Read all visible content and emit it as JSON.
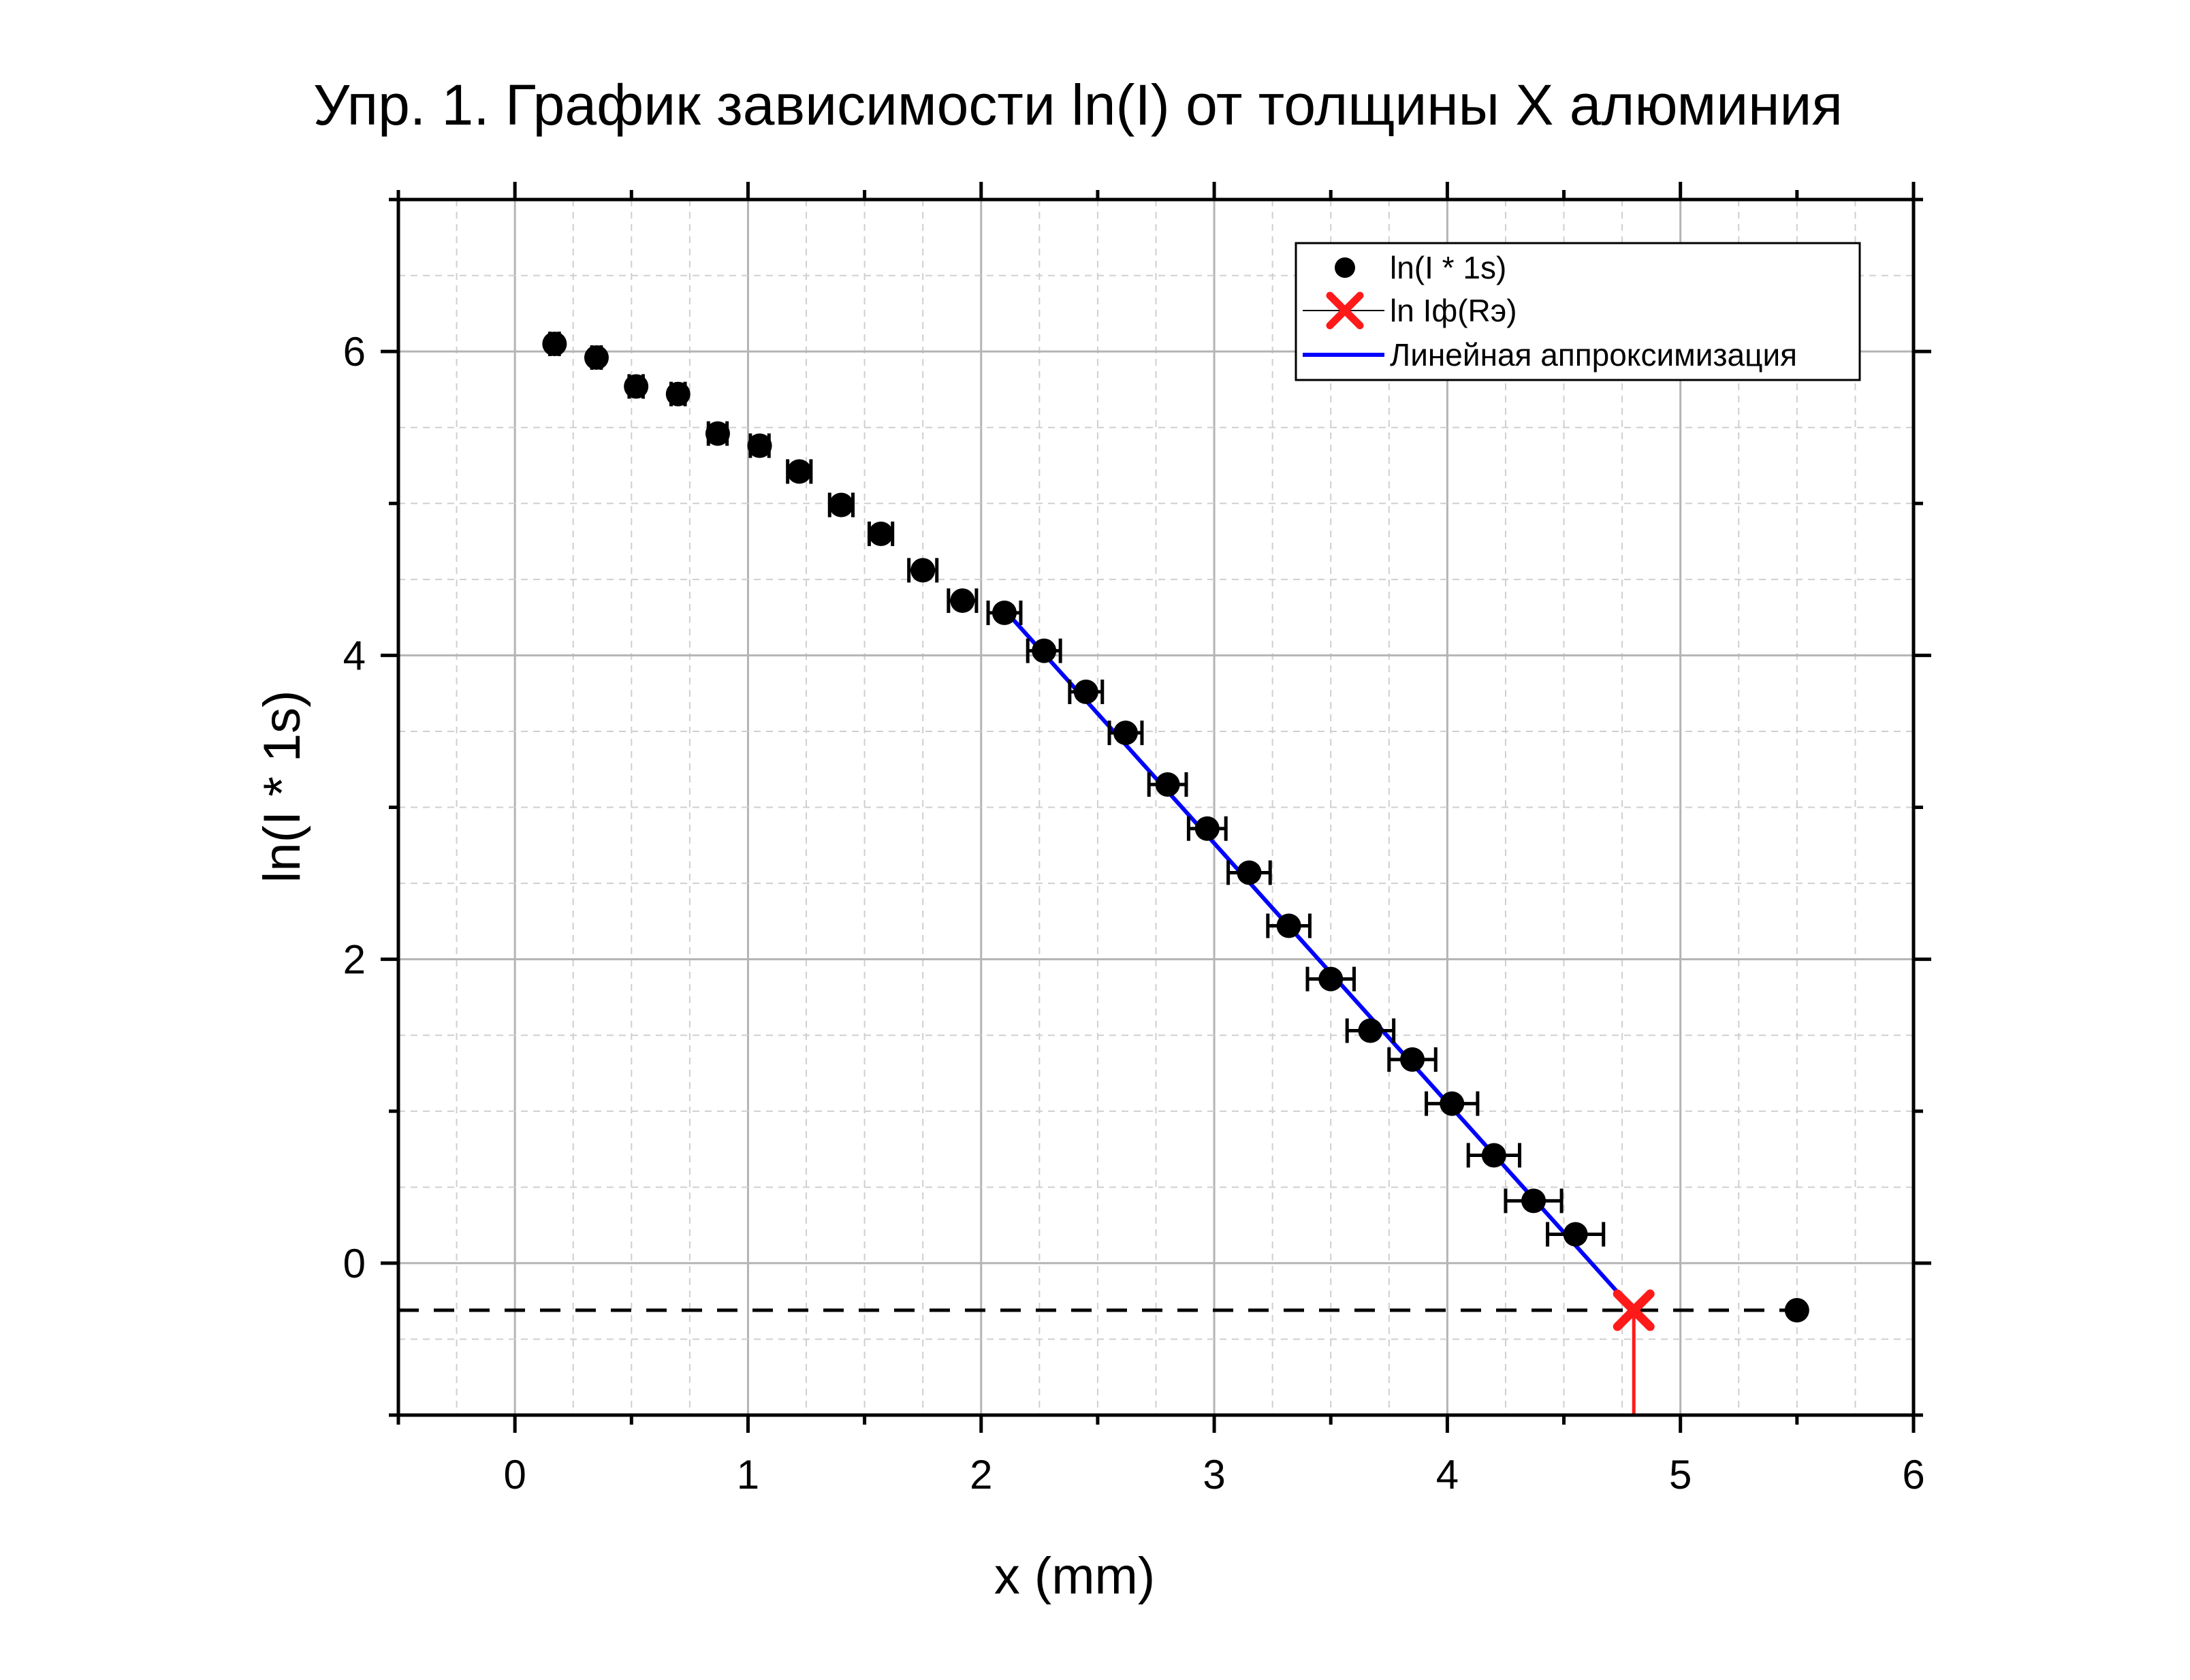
{
  "chart_data": {
    "type": "scatter",
    "title": "Упр. 1. График зависимости ln(I) от толщины X алюминия",
    "xlabel": "x (mm)",
    "ylabel": "ln(I * 1s)",
    "xlim": [
      -0.5,
      6
    ],
    "ylim": [
      -1,
      7
    ],
    "x_ticks": [
      0,
      1,
      2,
      3,
      4,
      5,
      6
    ],
    "x_tick_labels": [
      "0",
      "1",
      "2",
      "3",
      "4",
      "5",
      "6"
    ],
    "y_ticks": [
      0,
      2,
      4,
      6
    ],
    "y_tick_labels": [
      "0",
      "2",
      "4",
      "6"
    ],
    "grid": true,
    "legend_position": "top-right",
    "series": [
      {
        "name": "ln(I * 1s)",
        "kind": "points",
        "color": "#000000",
        "x": [
          0.17,
          0.35,
          0.52,
          0.7,
          0.87,
          1.05,
          1.22,
          1.4,
          1.57,
          1.75,
          1.92,
          2.1,
          2.27,
          2.45,
          2.62,
          2.8,
          2.97,
          3.15,
          3.32,
          3.5,
          3.67,
          3.85,
          4.02,
          4.2,
          4.37,
          4.55,
          5.5
        ],
        "y": [
          6.05,
          5.96,
          5.77,
          5.72,
          5.46,
          5.38,
          5.21,
          4.99,
          4.8,
          4.56,
          4.36,
          4.28,
          4.03,
          3.76,
          3.49,
          3.15,
          2.86,
          2.57,
          2.22,
          1.87,
          1.53,
          1.34,
          1.05,
          0.71,
          0.41,
          0.19,
          -0.31
        ],
        "x_err": [
          0.02,
          0.02,
          0.03,
          0.03,
          0.04,
          0.04,
          0.05,
          0.05,
          0.05,
          0.06,
          0.06,
          0.07,
          0.07,
          0.07,
          0.07,
          0.08,
          0.08,
          0.09,
          0.09,
          0.1,
          0.1,
          0.1,
          0.11,
          0.11,
          0.12,
          0.12,
          0.0
        ]
      },
      {
        "name": "ln Iф(Rэ)",
        "kind": "marker",
        "color": "#ff1a1a",
        "x": [
          4.8
        ],
        "y": [
          -0.31
        ]
      },
      {
        "name": "Линейная аппроксимизация",
        "kind": "line",
        "color": "#0000ff",
        "x": [
          2.1,
          4.8
        ],
        "y": [
          4.3,
          -0.31
        ]
      }
    ],
    "annotations": [
      {
        "type": "horizontal-dashed-line",
        "y": -0.31,
        "x": [
          -0.5,
          5.5
        ],
        "color": "#000000"
      },
      {
        "type": "vertical-line",
        "x": 4.8,
        "y": [
          -1,
          -0.31
        ],
        "color": "#ff1a1a"
      }
    ]
  }
}
